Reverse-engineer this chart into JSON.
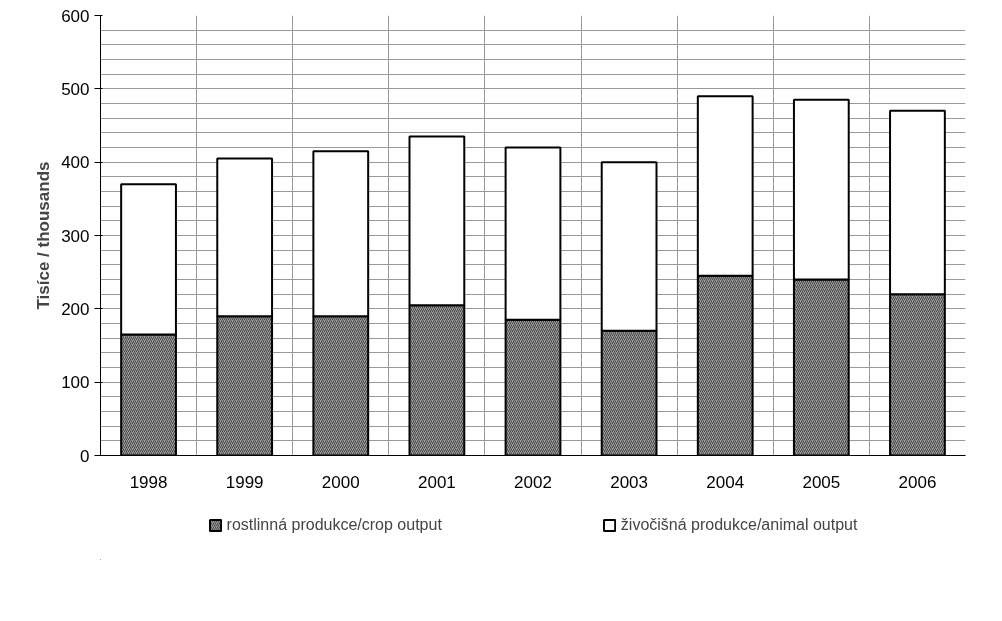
{
  "chart_data": {
    "type": "bar",
    "stacked": true,
    "ylabel": "Tisíce / thousands",
    "categories": [
      "1998",
      "1999",
      "2000",
      "2001",
      "2002",
      "2003",
      "2004",
      "2005",
      "2006"
    ],
    "series": [
      {
        "name": "rostlinná produkce/crop output",
        "color": "#9a9a9a",
        "values": [
          165,
          190,
          190,
          205,
          185,
          170,
          245,
          240,
          220
        ]
      },
      {
        "name": "živočišná produkce/animal output",
        "color": "#ffffff",
        "values": [
          205,
          215,
          225,
          230,
          235,
          230,
          245,
          245,
          250
        ]
      }
    ],
    "ylim": [
      0,
      600
    ],
    "yticks": [
      0,
      100,
      200,
      300,
      400,
      500,
      600
    ],
    "grid": true,
    "legend": "bottom"
  }
}
